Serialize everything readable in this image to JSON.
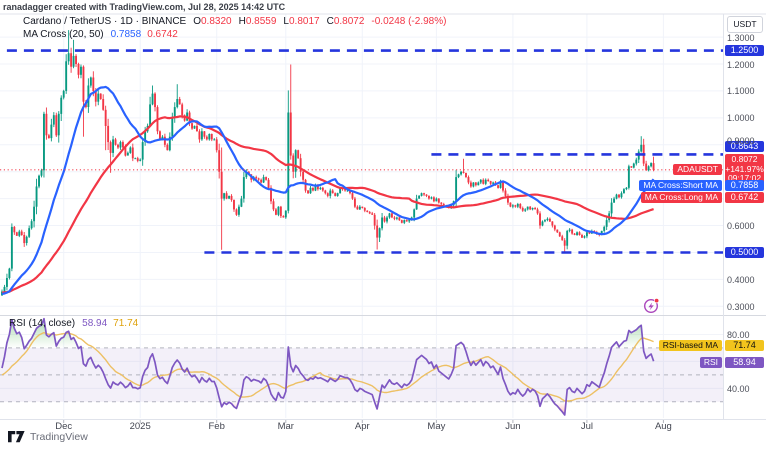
{
  "header": {
    "watermark": "ranadagger created with TradingView.com, Jul 28, 2025 14:42 UTC"
  },
  "legend": {
    "symbol_line": "Cardano / TetherUS · 1D · BINANCE",
    "o_label": "O",
    "o": "0.8320",
    "h_label": "H",
    "h": "0.8559",
    "l_label": "L",
    "l": "0.8017",
    "c_label": "C",
    "c": "0.8072",
    "change": "-0.0248 (-2.98%)"
  },
  "ma_legend": {
    "title": "MA Cross",
    "params": "(20, 50)",
    "short_value": "0.7858",
    "long_value": "0.6742"
  },
  "rsi_legend": {
    "title": "RSI",
    "params": "(14, close)",
    "value": "58.94",
    "ma_value": "71.74"
  },
  "axis": {
    "currency": "USDT"
  },
  "badges": {
    "level_1250": "1.2500",
    "level_0864": "0.8643",
    "level_0500": "0.5000",
    "price": "0.8072",
    "price_pct": "+141.97%",
    "countdown": "09:17:02",
    "short_ma": "0.7858",
    "long_ma": "0.6742",
    "symbol_label": "ADAUSDT",
    "short_label": "MA Cross:Short MA",
    "long_label": "MA Cross:Long MA",
    "rsi_ma_label": "RSI-based MA",
    "rsi_ma_value": "71.74",
    "rsi_label": "RSI",
    "rsi_value": "58.94"
  },
  "footer": {
    "brand": "TradingView"
  },
  "colors": {
    "up": "#089981",
    "down": "#F23645",
    "ma_short": "#2962FF",
    "ma_long": "#F23645",
    "level": "#2536DD",
    "price_line": "#F23645",
    "rsi": "#7E57C2",
    "rsi_ma": "#EDC064",
    "grid": "#F0F3FA",
    "border": "#E0E3EB",
    "band_fill": "rgba(126,87,194,0.09)",
    "ob_fill": "rgba(76,175,80,0.45)",
    "os_fill": "rgba(255,82,82,0.4)",
    "boost": "#AB47BC"
  },
  "chart_data": {
    "type": "candlestick",
    "title": "Cardano / TetherUS",
    "symbol": "ADAUSDT",
    "exchange": "BINANCE",
    "timeframe": "1D",
    "start_date": "2024-11-06",
    "end_date": "2025-07-28",
    "last_bar": {
      "open": 0.832,
      "high": 0.8559,
      "low": 0.8017,
      "close": 0.8072,
      "change": -0.0248,
      "change_pct": -2.98
    },
    "ma_short": {
      "period": 20,
      "value": 0.7858
    },
    "ma_long": {
      "period": 50,
      "value": 0.6742
    },
    "price_line": 0.8072,
    "session_change_pct": "+141.97%",
    "bar_countdown": "09:17:02",
    "ylim": [
      0.267,
      1.385
    ],
    "grid_prices": [
      0.3,
      0.4,
      0.5,
      0.6,
      0.7,
      0.8,
      0.9,
      1.0,
      1.1,
      1.2,
      1.3
    ],
    "yticks": [
      [
        "1.3000",
        1.3
      ],
      [
        "1.2000",
        1.2
      ],
      [
        "1.1000",
        1.1
      ],
      [
        "1.0000",
        1.0
      ],
      [
        "0.9000",
        0.9
      ],
      [
        "0.6000",
        0.6
      ],
      [
        "0.4000",
        0.4
      ],
      [
        "0.3000",
        0.3
      ]
    ],
    "levels": [
      {
        "price": 1.25,
        "label": "1.2500",
        "from_day": 2
      },
      {
        "price": 0.8643,
        "label": "0.8643",
        "from_day": 174
      },
      {
        "price": 0.5,
        "label": "0.5000",
        "from_day": 82
      }
    ],
    "months": [
      [
        "Dec",
        25
      ],
      [
        "2025",
        56
      ],
      [
        "Feb",
        87
      ],
      [
        "Mar",
        115
      ],
      [
        "Apr",
        146
      ],
      [
        "May",
        176
      ],
      [
        "Jun",
        207
      ],
      [
        "Jul",
        237
      ],
      [
        "Aug",
        268
      ]
    ],
    "pre_closes": [
      0.345,
      0.35,
      0.348,
      0.352,
      0.355,
      0.36,
      0.358,
      0.352,
      0.347,
      0.35,
      0.355,
      0.36,
      0.365,
      0.36,
      0.355,
      0.35,
      0.345,
      0.34,
      0.338,
      0.342,
      0.348,
      0.352,
      0.356,
      0.36,
      0.365,
      0.37,
      0.368,
      0.362,
      0.358,
      0.355,
      0.35,
      0.345,
      0.342,
      0.34,
      0.337,
      0.335,
      0.34,
      0.345,
      0.35,
      0.355,
      0.36,
      0.365,
      0.36,
      0.355,
      0.35,
      0.345,
      0.34,
      0.335,
      0.33,
      0.34
    ],
    "closes": [
      0.355,
      0.372,
      0.405,
      0.44,
      0.595,
      0.575,
      0.562,
      0.578,
      0.565,
      0.535,
      0.558,
      0.59,
      0.616,
      0.67,
      0.745,
      0.785,
      0.805,
      1.015,
      0.935,
      0.925,
      0.975,
      1.01,
      0.935,
      1.015,
      1.075,
      1.1,
      1.21,
      1.24,
      1.19,
      1.23,
      1.2,
      1.16,
      1.19,
      1.06,
      1.04,
      1.12,
      1.15,
      1.1,
      1.06,
      1.09,
      1.07,
      1.03,
      0.97,
      0.91,
      0.87,
      0.92,
      0.9,
      0.89,
      0.91,
      0.89,
      0.86,
      0.87,
      0.89,
      0.85,
      0.85,
      0.84,
      0.845,
      0.91,
      0.95,
      0.97,
      1.05,
      1.09,
      1.04,
      0.95,
      0.92,
      0.93,
      0.9,
      0.88,
      0.93,
      1.0,
      1.04,
      1.07,
      1.05,
      1.01,
      0.99,
      1.02,
      0.98,
      0.96,
      0.97,
      0.95,
      0.92,
      0.95,
      0.93,
      0.92,
      0.94,
      0.92,
      0.92,
      0.88,
      0.8,
      0.7,
      0.72,
      0.7,
      0.71,
      0.695,
      0.66,
      0.64,
      0.67,
      0.7,
      0.78,
      0.8,
      0.79,
      0.77,
      0.78,
      0.775,
      0.77,
      0.76,
      0.78,
      0.77,
      0.74,
      0.69,
      0.66,
      0.64,
      0.67,
      0.635,
      0.63,
      0.655,
      1.02,
      0.86,
      0.8,
      0.88,
      0.85,
      0.8,
      0.77,
      0.73,
      0.72,
      0.74,
      0.73,
      0.75,
      0.735,
      0.74,
      0.73,
      0.72,
      0.71,
      0.73,
      0.72,
      0.71,
      0.72,
      0.74,
      0.735,
      0.73,
      0.73,
      0.72,
      0.7,
      0.67,
      0.66,
      0.67,
      0.665,
      0.655,
      0.65,
      0.645,
      0.64,
      0.6,
      0.555,
      0.59,
      0.63,
      0.615,
      0.63,
      0.645,
      0.63,
      0.625,
      0.63,
      0.62,
      0.61,
      0.62,
      0.615,
      0.62,
      0.63,
      0.66,
      0.7,
      0.71,
      0.72,
      0.715,
      0.71,
      0.7,
      0.705,
      0.69,
      0.7,
      0.685,
      0.68,
      0.675,
      0.67,
      0.665,
      0.675,
      0.69,
      0.78,
      0.79,
      0.8,
      0.795,
      0.78,
      0.76,
      0.745,
      0.76,
      0.75,
      0.76,
      0.77,
      0.755,
      0.77,
      0.765,
      0.755,
      0.76,
      0.75,
      0.74,
      0.76,
      0.73,
      0.71,
      0.685,
      0.67,
      0.675,
      0.67,
      0.68,
      0.665,
      0.655,
      0.66,
      0.67,
      0.66,
      0.665,
      0.66,
      0.645,
      0.6,
      0.615,
      0.62,
      0.625,
      0.615,
      0.6,
      0.585,
      0.575,
      0.56,
      0.545,
      0.525,
      0.58,
      0.585,
      0.57,
      0.565,
      0.575,
      0.565,
      0.555,
      0.56,
      0.575,
      0.57,
      0.58,
      0.575,
      0.57,
      0.565,
      0.58,
      0.595,
      0.62,
      0.645,
      0.685,
      0.7,
      0.715,
      0.705,
      0.72,
      0.735,
      0.74,
      0.82,
      0.815,
      0.83,
      0.845,
      0.875,
      0.9,
      0.83,
      0.805,
      0.82,
      0.832,
      0.8072
    ],
    "overrides": {
      "27": {
        "h": 1.326
      },
      "29": {
        "h": 1.29
      },
      "33": {
        "l": 0.93
      },
      "42": {
        "l": 0.88
      },
      "44": {
        "l": 0.796
      },
      "61": {
        "h": 1.12
      },
      "71": {
        "h": 1.125
      },
      "89": {
        "h": 0.89,
        "l": 0.51
      },
      "116": {
        "h": 1.102
      },
      "117": {
        "h": 1.198,
        "l": 0.845
      },
      "152": {
        "l": 0.511
      },
      "187": {
        "h": 0.848
      },
      "228": {
        "l": 0.502
      },
      "259": {
        "h": 0.932
      },
      "264": {
        "o": 0.832,
        "h": 0.8559,
        "l": 0.8017,
        "c": 0.8072
      }
    },
    "rsi": {
      "period": 14,
      "value": 58.94,
      "ma_period": 14,
      "ma_value": 71.74,
      "ylim": [
        18,
        93.7
      ],
      "bands": [
        70,
        50,
        30
      ],
      "ticks": [
        [
          "80.00",
          80
        ],
        [
          "40.00",
          40
        ]
      ]
    }
  }
}
